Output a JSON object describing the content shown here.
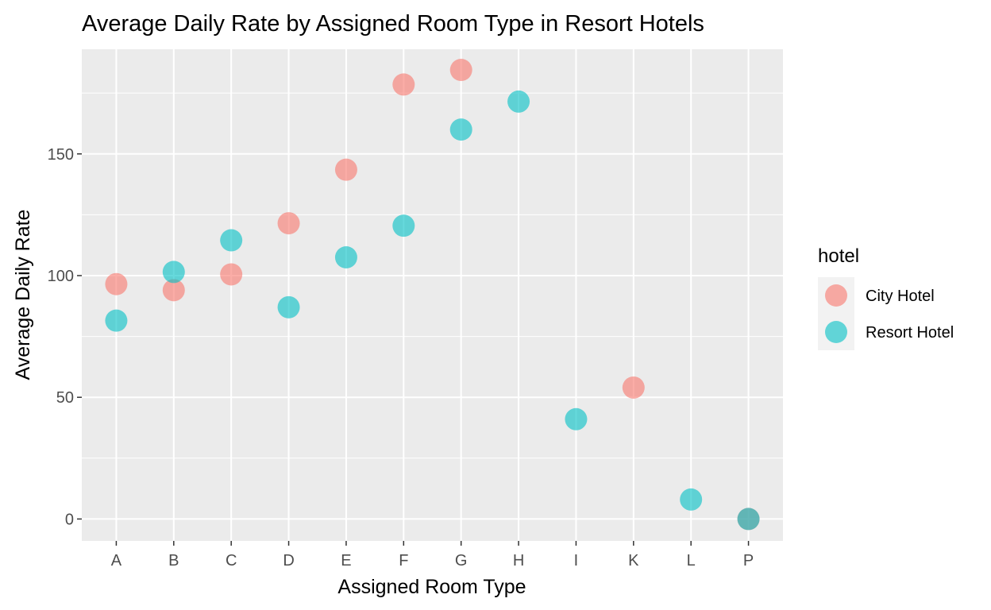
{
  "chart_data": {
    "type": "scatter",
    "title": "Average Daily Rate by Assigned Room Type in Resort Hotels",
    "xlabel": "Assigned Room Type",
    "ylabel": "Average Daily Rate",
    "categories": [
      "A",
      "B",
      "C",
      "D",
      "E",
      "F",
      "G",
      "H",
      "I",
      "K",
      "L",
      "P"
    ],
    "ylim": [
      -9,
      193
    ],
    "yticks": [
      0,
      50,
      100,
      150
    ],
    "grid": true,
    "legend": {
      "title": "hotel",
      "placement": "right"
    },
    "series": [
      {
        "name": "City Hotel",
        "color": "#F8766D",
        "points": [
          {
            "x": "A",
            "y": 96.5
          },
          {
            "x": "B",
            "y": 94
          },
          {
            "x": "C",
            "y": 100.5
          },
          {
            "x": "D",
            "y": 121.5
          },
          {
            "x": "E",
            "y": 143.5
          },
          {
            "x": "F",
            "y": 178.5
          },
          {
            "x": "G",
            "y": 184.5
          },
          {
            "x": "K",
            "y": 54
          },
          {
            "x": "P",
            "y": 0
          }
        ]
      },
      {
        "name": "Resort Hotel",
        "color": "#00BFC4",
        "points": [
          {
            "x": "A",
            "y": 81.5
          },
          {
            "x": "B",
            "y": 101.5
          },
          {
            "x": "C",
            "y": 114.5
          },
          {
            "x": "D",
            "y": 87
          },
          {
            "x": "E",
            "y": 107.5
          },
          {
            "x": "F",
            "y": 120.5
          },
          {
            "x": "G",
            "y": 160
          },
          {
            "x": "H",
            "y": 171.5
          },
          {
            "x": "I",
            "y": 41
          },
          {
            "x": "L",
            "y": 8
          },
          {
            "x": "P",
            "y": 0
          }
        ]
      }
    ]
  }
}
